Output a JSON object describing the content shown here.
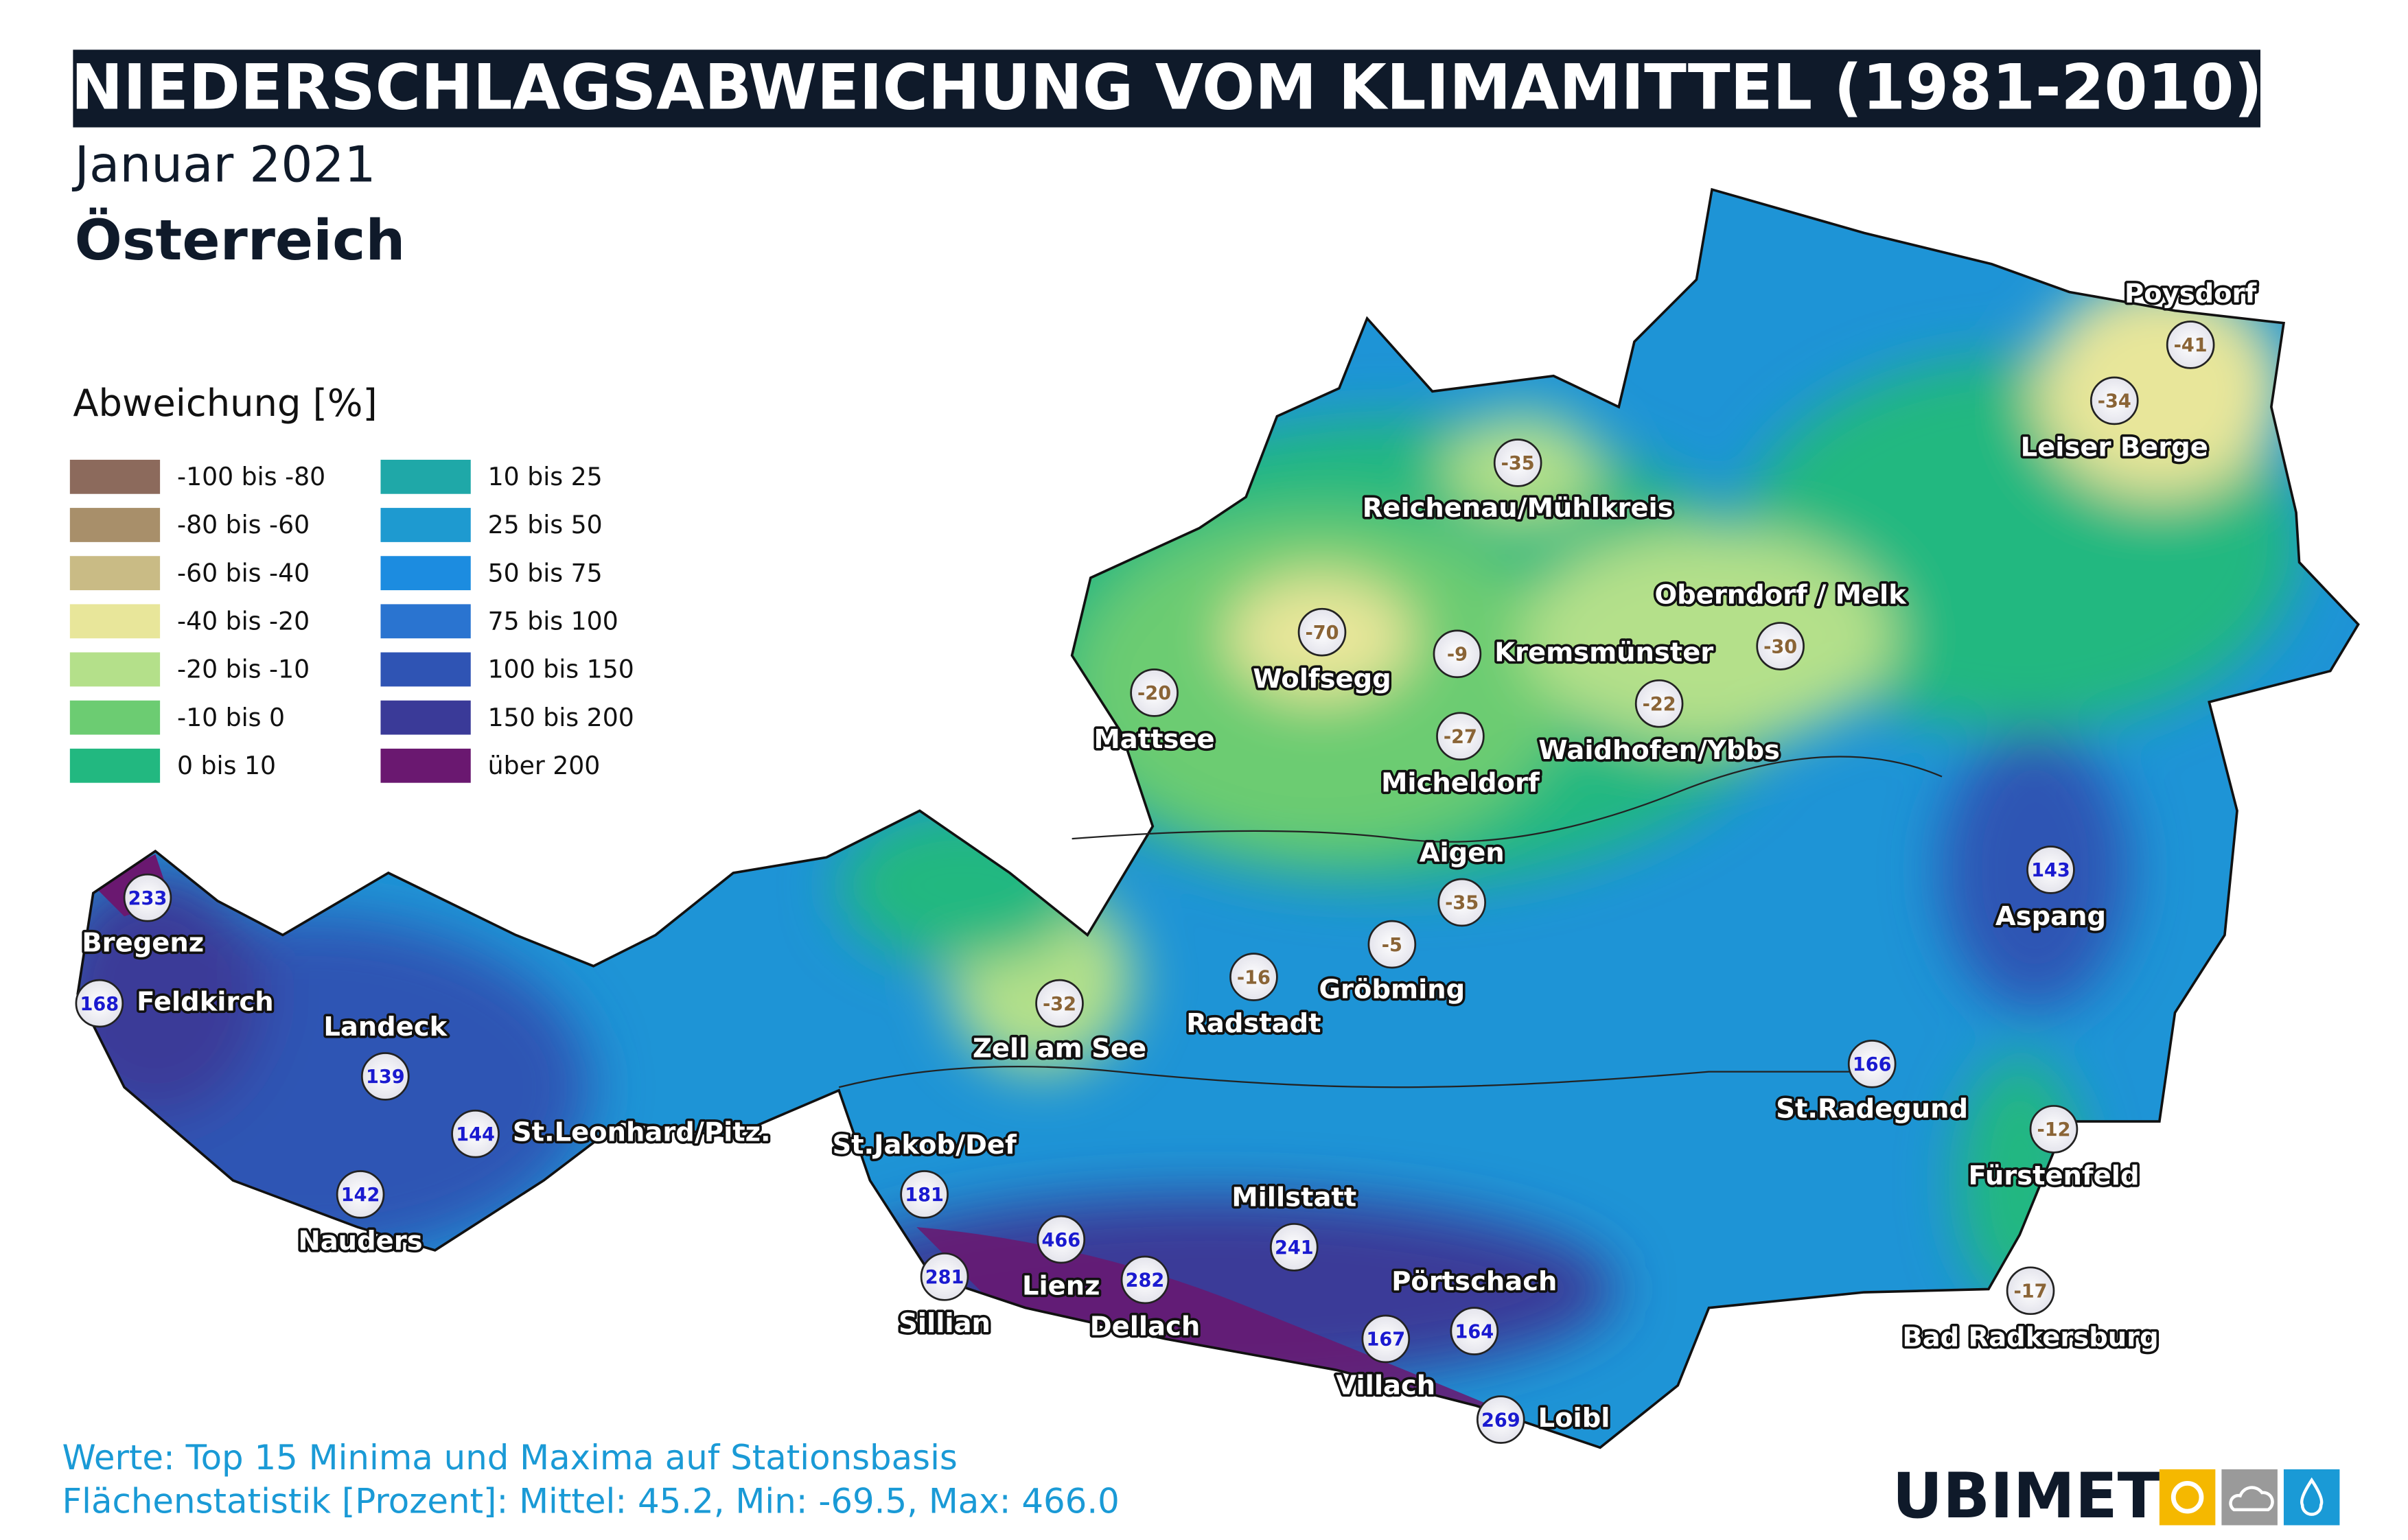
{
  "title": "NIEDERSCHLAGSABWEICHUNG VOM KLIMAMITTEL (1981-2010)",
  "subtitle": "Januar 2021",
  "region": "Österreich",
  "legend": {
    "title": "Abweichung [%]",
    "items": [
      {
        "label": "-100 bis -80",
        "color": "#8c6a5c"
      },
      {
        "label": "-80 bis -60",
        "color": "#a88f6a"
      },
      {
        "label": "-60 bis -40",
        "color": "#c9bb85"
      },
      {
        "label": "-40 bis -20",
        "color": "#e8e69a"
      },
      {
        "label": "-20 bis -10",
        "color": "#b4e08a"
      },
      {
        "label": "-10 bis 0",
        "color": "#6ccc72"
      },
      {
        "label": "0 bis 10",
        "color": "#22b880"
      },
      {
        "label": "10 bis 25",
        "color": "#1fa8a8"
      },
      {
        "label": "25 bis 50",
        "color": "#1e9ad0"
      },
      {
        "label": "50 bis 75",
        "color": "#1c8ce0"
      },
      {
        "label": "75 bis 100",
        "color": "#2a74d0"
      },
      {
        "label": "100 bis 150",
        "color": "#2f54b4"
      },
      {
        "label": "150 bis 200",
        "color": "#3a3a98"
      },
      {
        "label": "über 200",
        "color": "#6a1870"
      }
    ]
  },
  "stations": [
    {
      "name": "Poysdorf",
      "value": -41
    },
    {
      "name": "Leiser Berge",
      "value": -34
    },
    {
      "name": "Reichenau/Mühlkreis",
      "value": -35
    },
    {
      "name": "Oberndorf / Melk",
      "value": -30
    },
    {
      "name": "Wolfsegg",
      "value": -70
    },
    {
      "name": "Kremsmünster",
      "value": -9
    },
    {
      "name": "Mattsee",
      "value": -20
    },
    {
      "name": "Waidhofen/Ybbs",
      "value": -22
    },
    {
      "name": "Micheldorf",
      "value": -27
    },
    {
      "name": "Aigen",
      "value": -35
    },
    {
      "name": "Gröbming",
      "value": -5
    },
    {
      "name": "Radstadt",
      "value": -16
    },
    {
      "name": "Zell am See",
      "value": -32
    },
    {
      "name": "Bregenz",
      "value": 233
    },
    {
      "name": "Feldkirch",
      "value": 168
    },
    {
      "name": "Landeck",
      "value": 139
    },
    {
      "name": "St.Leonhard/Pitz.",
      "value": 144
    },
    {
      "name": "Nauders",
      "value": 142
    },
    {
      "name": "St.Jakob/Def",
      "value": 181
    },
    {
      "name": "Sillian",
      "value": 281
    },
    {
      "name": "Lienz",
      "value": 466
    },
    {
      "name": "Dellach",
      "value": 282
    },
    {
      "name": "Millstatt",
      "value": 241
    },
    {
      "name": "Pörtschach",
      "value": 164
    },
    {
      "name": "Villach",
      "value": 167
    },
    {
      "name": "Loibl",
      "value": 269
    },
    {
      "name": "Aspang",
      "value": 143
    },
    {
      "name": "St.Radegund",
      "value": 166
    },
    {
      "name": "Fürstenfeld",
      "value": -12
    },
    {
      "name": "Bad Radkersburg",
      "value": -17
    }
  ],
  "footer": [
    "Werte: Top 15 Minima und Maxima auf Stationsbasis",
    "Flächenstatistik [Prozent]: Mittel: 45.2, Min: -69.5, Max: 466.0"
  ],
  "logo": "UBIMET"
}
